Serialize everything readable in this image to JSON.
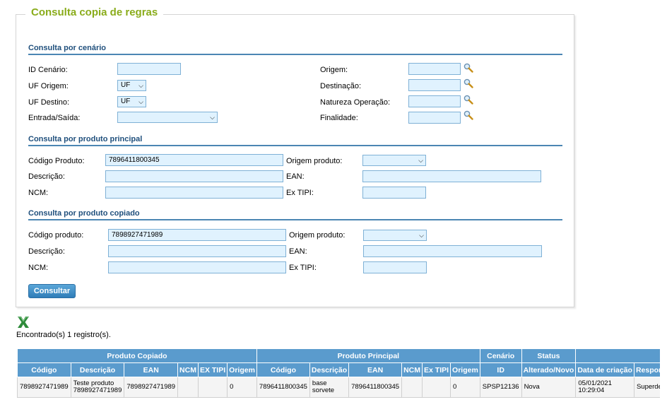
{
  "title": "Consulta copia de regras",
  "cenario": {
    "heading": "Consulta por cenário",
    "id_label": "ID Cenário:",
    "id_value": "",
    "uf_origem_label": "UF Origem:",
    "uf_origem_value": "UF",
    "uf_destino_label": "UF Destino:",
    "uf_destino_value": "UF",
    "entrada_saida_label": "Entrada/Saída:",
    "entrada_saida_value": "",
    "origem_label": "Origem:",
    "destinacao_label": "Destinação:",
    "natureza_label": "Natureza Operação:",
    "finalidade_label": "Finalidade:"
  },
  "principal": {
    "heading": "Consulta por produto principal",
    "codigo_label": "Código Produto:",
    "codigo_value": "7896411800345",
    "descricao_label": "Descrição:",
    "ncm_label": "NCM:",
    "origem_label": "Origem produto:",
    "ean_label": "EAN:",
    "extipi_label": "Ex TIPI:"
  },
  "copiado": {
    "heading": "Consulta por produto copiado",
    "codigo_label": "Código produto:",
    "codigo_value": "7898927471989",
    "descricao_label": "Descrição:",
    "ncm_label": "NCM:",
    "origem_label": "Origem produto:",
    "ean_label": "EAN:",
    "extipi_label": "Ex TIPI:"
  },
  "consultar_label": "Consultar",
  "export_icon": "excel-icon",
  "found_text": "Encontrado(s) 1 registro(s).",
  "table": {
    "groups": [
      "Produto Copiado",
      "Produto Principal",
      "Cenário",
      "Status",
      ""
    ],
    "columns": [
      "Código",
      "Descrição",
      "EAN",
      "NCM",
      "EX TIPI",
      "Origem",
      "Código",
      "Descrição",
      "EAN",
      "NCM",
      "Ex TIPI",
      "Origem",
      "ID",
      "Alterado/Novo",
      "Data de criação",
      "Responsável"
    ],
    "rows": [
      [
        "7898927471989",
        "Teste produto 7898927471989",
        "7898927471989",
        "",
        "",
        "0",
        "7896411800345",
        "base sorvete",
        "7896411800345",
        "",
        "",
        "0",
        "SPSP12136",
        "Nova",
        "05/01/2021 10:29:04",
        "Superdemo"
      ]
    ]
  },
  "colors": {
    "header_blue": "#5a9bcd",
    "title_green": "#8aac1b",
    "section_blue": "#1f4f7c",
    "input_bg": "#e0f2fe"
  }
}
